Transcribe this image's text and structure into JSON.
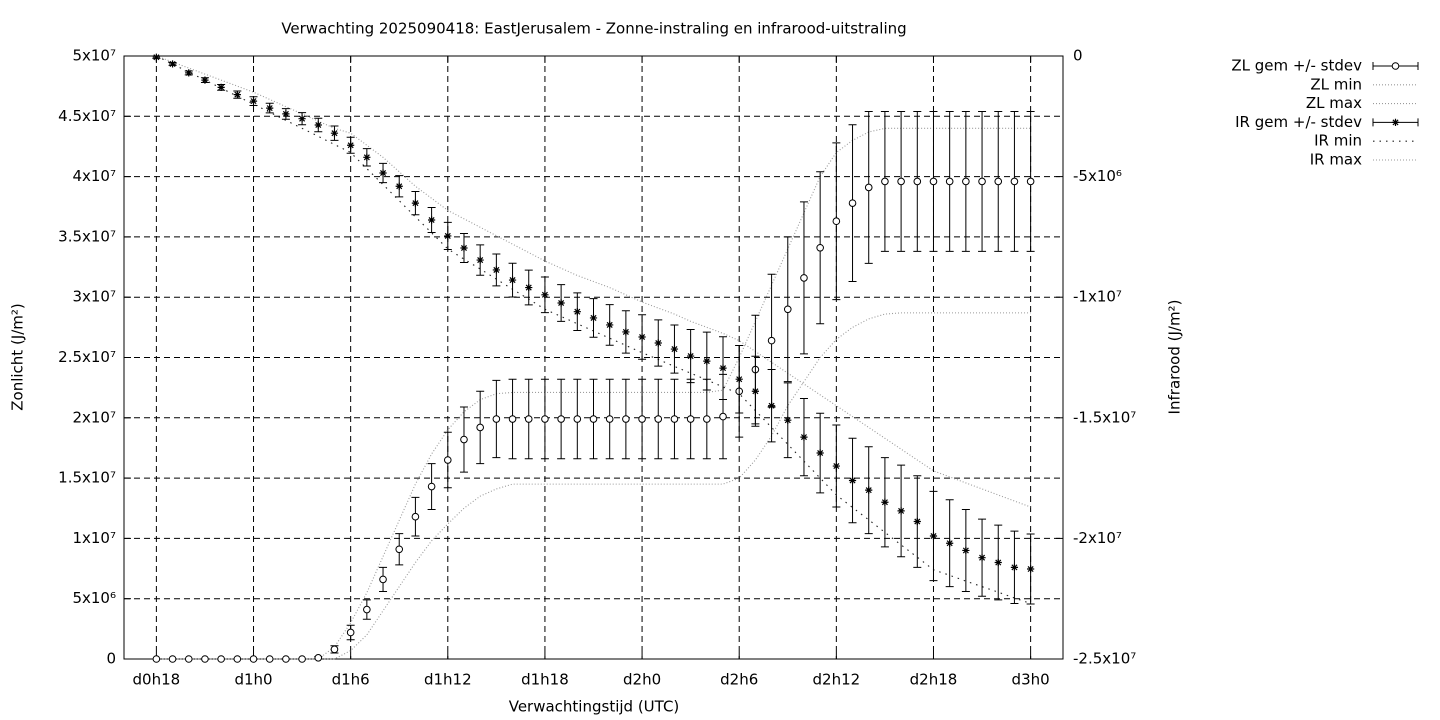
{
  "chart_data": {
    "type": "line",
    "title": "Verwachting 2025090418: EastJerusalem - Zonne-instraling en infrarood-uitstraling",
    "x_label": "Verwachtingstijd (UTC)",
    "y_label": "Zonlicht (J/m²)",
    "y2_label": "Infrarood (J/m²)",
    "grid": true,
    "legend": "outside-top-right",
    "xlim": [
      16,
      74
    ],
    "xticks": [
      {
        "value": 18,
        "label": "d0h18"
      },
      {
        "value": 24,
        "label": "d1h0"
      },
      {
        "value": 30,
        "label": "d1h6"
      },
      {
        "value": 36,
        "label": "d1h12"
      },
      {
        "value": 42,
        "label": "d1h18"
      },
      {
        "value": 48,
        "label": "d2h0"
      },
      {
        "value": 54,
        "label": "d2h6"
      },
      {
        "value": 60,
        "label": "d2h12"
      },
      {
        "value": 66,
        "label": "d2h18"
      },
      {
        "value": 72,
        "label": "d3h0"
      }
    ],
    "ylim": [
      0,
      50000000
    ],
    "yticks": [
      0,
      {
        "value": 5000000,
        "label": "5x10⁶"
      },
      {
        "value": 10000000,
        "label": "1x10⁷"
      },
      {
        "value": 15000000,
        "label": "1.5x10⁷"
      },
      {
        "value": 20000000,
        "label": "2x10⁷"
      },
      {
        "value": 25000000,
        "label": "2.5x10⁷"
      },
      {
        "value": 30000000,
        "label": "3x10⁷"
      },
      {
        "value": 35000000,
        "label": "3.5x10⁷"
      },
      {
        "value": 40000000,
        "label": "4x10⁷"
      },
      {
        "value": 45000000,
        "label": "4.5x10⁷"
      },
      {
        "value": 50000000,
        "label": "5x10⁷"
      }
    ],
    "y2lim": [
      -25000000,
      0
    ],
    "y2ticks": [
      {
        "value": -25000000,
        "label": "-2.5x10⁷"
      },
      {
        "value": -20000000,
        "label": "-2x10⁷"
      },
      {
        "value": -15000000,
        "label": "-1.5x10⁷"
      },
      {
        "value": -10000000,
        "label": "-1x10⁷"
      },
      {
        "value": -5000000,
        "label": "-5x10⁶"
      },
      0
    ],
    "x": [
      18,
      19,
      20,
      21,
      22,
      23,
      24,
      25,
      26,
      27,
      28,
      29,
      30,
      31,
      32,
      33,
      34,
      35,
      36,
      37,
      38,
      39,
      40,
      41,
      42,
      43,
      44,
      45,
      46,
      47,
      48,
      49,
      50,
      51,
      52,
      53,
      54,
      55,
      56,
      57,
      58,
      59,
      60,
      61,
      62,
      63,
      64,
      65,
      66,
      67,
      68,
      69,
      70,
      71,
      72
    ],
    "series": [
      {
        "name": "ZL gem +/- stdev",
        "style": "errorbars",
        "point": "circle",
        "color": "#000000",
        "values": [
          0,
          0,
          0,
          0,
          0,
          0,
          0,
          0,
          0,
          0,
          100000.0,
          800000.0,
          2200000.0,
          4100000.0,
          6600000.0,
          9100000.0,
          11800000.0,
          14300000.0,
          16500000.0,
          18200000.0,
          19200000.0,
          19900000.0,
          19900000.0,
          19900000.0,
          19900000.0,
          19900000.0,
          19900000.0,
          19900000.0,
          19900000.0,
          19900000.0,
          19900000.0,
          19900000.0,
          19900000.0,
          19900000.0,
          19900000.0,
          20100000.0,
          22200000.0,
          24000000.0,
          26400000.0,
          29000000.0,
          31600000.0,
          34100000.0,
          36300000.0,
          37800000.0,
          39100000.0,
          39600000.0,
          39600000.0,
          39600000.0,
          39600000.0,
          39600000.0,
          39600000.0,
          39600000.0,
          39600000.0,
          39600000.0,
          39600000.0
        ],
        "errors": [
          0,
          0,
          0,
          0,
          0,
          0,
          0,
          0,
          0,
          0,
          100000.0,
          300000.0,
          600000.0,
          800000.0,
          1000000.0,
          1300000.0,
          1600000.0,
          1900000.0,
          2300000.0,
          2700000.0,
          3000000.0,
          3200000.0,
          3300000.0,
          3300000.0,
          3300000.0,
          3300000.0,
          3300000.0,
          3300000.0,
          3300000.0,
          3300000.0,
          3300000.0,
          3300000.0,
          3300000.0,
          3300000.0,
          3300000.0,
          3500000.0,
          3800000.0,
          4500000.0,
          5500000.0,
          6000000.0,
          6300000.0,
          6300000.0,
          6500000.0,
          6500000.0,
          6300000.0,
          5800000.0,
          5800000.0,
          5800000.0,
          5800000.0,
          5800000.0,
          5800000.0,
          5800000.0,
          5800000.0,
          5800000.0,
          5800000.0
        ]
      },
      {
        "name": "ZL min",
        "style": "line",
        "dash": "1 2",
        "color": "#9a9a9a",
        "values": [
          0,
          0,
          0,
          0,
          0,
          0,
          0,
          0,
          0,
          0,
          0,
          0,
          700000.0,
          2000000.0,
          4000000.0,
          6000000.0,
          8000000.0,
          9800000.0,
          11200000.0,
          12500000.0,
          13500000.0,
          14100000.0,
          14500000.0,
          14500000.0,
          14500000.0,
          14500000.0,
          14500000.0,
          14500000.0,
          14500000.0,
          14500000.0,
          14500000.0,
          14500000.0,
          14500000.0,
          14500000.0,
          14500000.0,
          14500000.0,
          15000000.0,
          16500000.0,
          18500000.0,
          21000000.0,
          23000000.0,
          25000000.0,
          26500000.0,
          27500000.0,
          28200000.0,
          28600000.0,
          28700000.0,
          28700000.0,
          28700000.0,
          28700000.0,
          28700000.0,
          28700000.0,
          28700000.0,
          28700000.0,
          28700000.0
        ]
      },
      {
        "name": "ZL max",
        "style": "line",
        "dash": "1 2",
        "color": "#9a9a9a",
        "values": [
          0,
          0,
          0,
          0,
          0,
          0,
          0,
          0,
          0,
          0,
          0,
          1000000.0,
          3000000.0,
          5500000.0,
          8500000.0,
          11500000.0,
          14500000.0,
          17000000.0,
          19000000.0,
          20500000.0,
          21500000.0,
          22000000.0,
          22100000.0,
          22100000.0,
          22100000.0,
          22100000.0,
          22100000.0,
          22100000.0,
          22100000.0,
          22100000.0,
          22100000.0,
          22100000.0,
          22100000.0,
          22100000.0,
          22100000.0,
          22300000.0,
          25000000.0,
          28000000.0,
          31000000.0,
          34000000.0,
          37000000.0,
          40000000.0,
          42000000.0,
          43000000.0,
          43700000.0,
          44000000.0,
          44000000.0,
          44000000.0,
          44000000.0,
          44000000.0,
          44000000.0,
          44000000.0,
          44000000.0,
          44000000.0,
          44000000.0
        ]
      },
      {
        "name": "IR gem +/- stdev",
        "style": "errorbars",
        "point": "star",
        "axis": "y2",
        "color": "#000000",
        "values": [
          -50000.0,
          -330000.0,
          -700000.0,
          -1000000.0,
          -1300000.0,
          -1600000.0,
          -1870000.0,
          -2160000.0,
          -2400000.0,
          -2600000.0,
          -2860000.0,
          -3200000.0,
          -3700000.0,
          -4200000.0,
          -4850000.0,
          -5400000.0,
          -6100000.0,
          -6800000.0,
          -7460000.0,
          -7960000.0,
          -8460000.0,
          -8870000.0,
          -9290000.0,
          -9600000.0,
          -9900000.0,
          -10240000.0,
          -10600000.0,
          -10860000.0,
          -11150000.0,
          -11440000.0,
          -11650000.0,
          -11900000.0,
          -12150000.0,
          -12440000.0,
          -12650000.0,
          -12940000.0,
          -13400000.0,
          -13900000.0,
          -14500000.0,
          -15100000.0,
          -15800000.0,
          -16460000.0,
          -17000000.0,
          -17600000.0,
          -18000000.0,
          -18500000.0,
          -18860000.0,
          -19300000.0,
          -19900000.0,
          -20200000.0,
          -20500000.0,
          -20800000.0,
          -21000000.0,
          -21200000.0,
          -21270000.0
        ],
        "errors": [
          50000.0,
          60000.0,
          80000.0,
          100000.0,
          120000.0,
          150000.0,
          180000.0,
          200000.0,
          220000.0,
          250000.0,
          280000.0,
          300000.0,
          330000.0,
          360000.0,
          400000.0,
          440000.0,
          480000.0,
          520000.0,
          560000.0,
          600000.0,
          630000.0,
          660000.0,
          700000.0,
          720000.0,
          740000.0,
          760000.0,
          780000.0,
          800000.0,
          840000.0,
          880000.0,
          920000.0,
          960000.0,
          1000000.0,
          1100000.0,
          1200000.0,
          1300000.0,
          1400000.0,
          1450000.0,
          1500000.0,
          1550000.0,
          1600000.0,
          1650000.0,
          1700000.0,
          1750000.0,
          1800000.0,
          1850000.0,
          1900000.0,
          1900000.0,
          1850000.0,
          1800000.0,
          1700000.0,
          1600000.0,
          1550000.0,
          1500000.0,
          1450000.0
        ]
      },
      {
        "name": "IR min",
        "style": "line",
        "dash": "1.5 5",
        "axis": "y2",
        "color": "#222222",
        "values": [
          0,
          -330000.0,
          -670000.0,
          -1000000.0,
          -1330000.0,
          -1670000.0,
          -2000000.0,
          -2330000.0,
          -2670000.0,
          -3000000.0,
          -3330000.0,
          -3670000.0,
          -4000000.0,
          -4670000.0,
          -5330000.0,
          -6000000.0,
          -6670000.0,
          -7330000.0,
          -8000000.0,
          -8420000.0,
          -8830000.0,
          -9250000.0,
          -9670000.0,
          -10080000.0,
          -10500000.0,
          -10800000.0,
          -11100000.0,
          -11400000.0,
          -11700000.0,
          -12000000.0,
          -12300000.0,
          -12580000.0,
          -12870000.0,
          -13150000.0,
          -13430000.0,
          -13720000.0,
          -14000000.0,
          -14700000.0,
          -15400000.0,
          -16100000.0,
          -16800000.0,
          -17500000.0,
          -18200000.0,
          -18720000.0,
          -19230000.0,
          -19750000.0,
          -20270000.0,
          -20780000.0,
          -21300000.0,
          -21530000.0,
          -21770000.0,
          -22000000.0,
          -22230000.0,
          -22470000.0,
          -22700000.0
        ]
      },
      {
        "name": "IR max",
        "style": "line",
        "dash": "1 2",
        "axis": "y2",
        "color": "#9a9a9a",
        "values": [
          0,
          -250000.0,
          -500000.0,
          -750000.0,
          -1000000.0,
          -1250000.0,
          -1500000.0,
          -1800000.0,
          -2100000.0,
          -2400000.0,
          -2700000.0,
          -3000000.0,
          -3200000.0,
          -3700000.0,
          -4200000.0,
          -4800000.0,
          -5400000.0,
          -5900000.0,
          -6400000.0,
          -6750000.0,
          -7100000.0,
          -7450000.0,
          -7800000.0,
          -8150000.0,
          -8500000.0,
          -8800000.0,
          -9100000.0,
          -9350000.0,
          -9600000.0,
          -9900000.0,
          -10200000.0,
          -10450000.0,
          -10700000.0,
          -11000000.0,
          -11250000.0,
          -11500000.0,
          -11800000.0,
          -12250000.0,
          -12700000.0,
          -13150000.0,
          -13600000.0,
          -14050000.0,
          -14500000.0,
          -14950000.0,
          -15400000.0,
          -15850000.0,
          -16300000.0,
          -16750000.0,
          -17200000.0,
          -17450000.0,
          -17700000.0,
          -17950000.0,
          -18200000.0,
          -18450000.0,
          -18700000.0
        ]
      }
    ]
  }
}
